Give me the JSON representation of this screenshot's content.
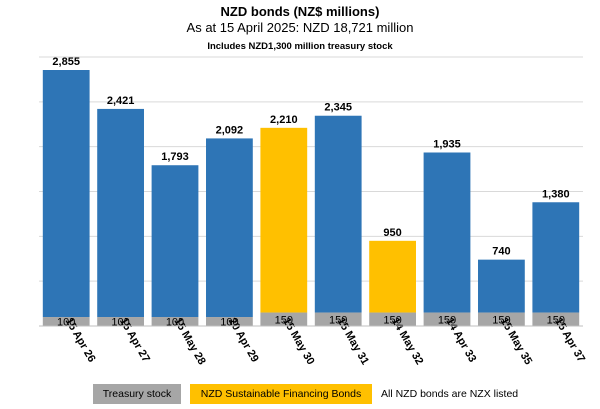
{
  "title": "NZD bonds (NZ$ millions)",
  "subtitle": "As at 15 April 2025: NZD 18,721 million",
  "note": "Includes NZD1,300 million treasury stock",
  "legend": {
    "treasury": "Treasury stock",
    "sustainable": "NZD Sustainable Financing Bonds",
    "listing_note": "All NZD bonds are NZX listed"
  },
  "colors": {
    "nominal": "#2e75b6",
    "sustainable": "#ffc000",
    "treasury": "#a6a6a6",
    "grid": "#d9d9d9"
  },
  "chart_data": {
    "type": "bar",
    "stacked": true,
    "categories": [
      "15 Apr 26",
      "15 Apr 27",
      "15 May 28",
      "20 Apr 29",
      "15 May 30",
      "15 May 31",
      "14 May 32",
      "14 Apr 33",
      "15 May 35",
      "15 Apr 37"
    ],
    "totals": [
      2855,
      2421,
      1793,
      2092,
      2210,
      2345,
      950,
      1935,
      740,
      1380
    ],
    "treasury_stock": [
      100,
      100,
      100,
      100,
      150,
      150,
      150,
      150,
      150,
      150
    ],
    "bond_kind": [
      "nominal",
      "nominal",
      "nominal",
      "nominal",
      "sustainable",
      "nominal",
      "sustainable",
      "nominal",
      "nominal",
      "nominal"
    ],
    "total_labels": [
      "2,855",
      "2,421",
      "1,793",
      "2,092",
      "2,210",
      "2,345",
      "950",
      "1,935",
      "740",
      "1,380"
    ],
    "treasury_labels": [
      "100",
      "100",
      "100",
      "100",
      "150",
      "150",
      "150",
      "150",
      "150",
      "150"
    ],
    "ylim": [
      0,
      3000
    ],
    "ygrid_step": 500,
    "grid": true,
    "legend_position": "bottom"
  }
}
